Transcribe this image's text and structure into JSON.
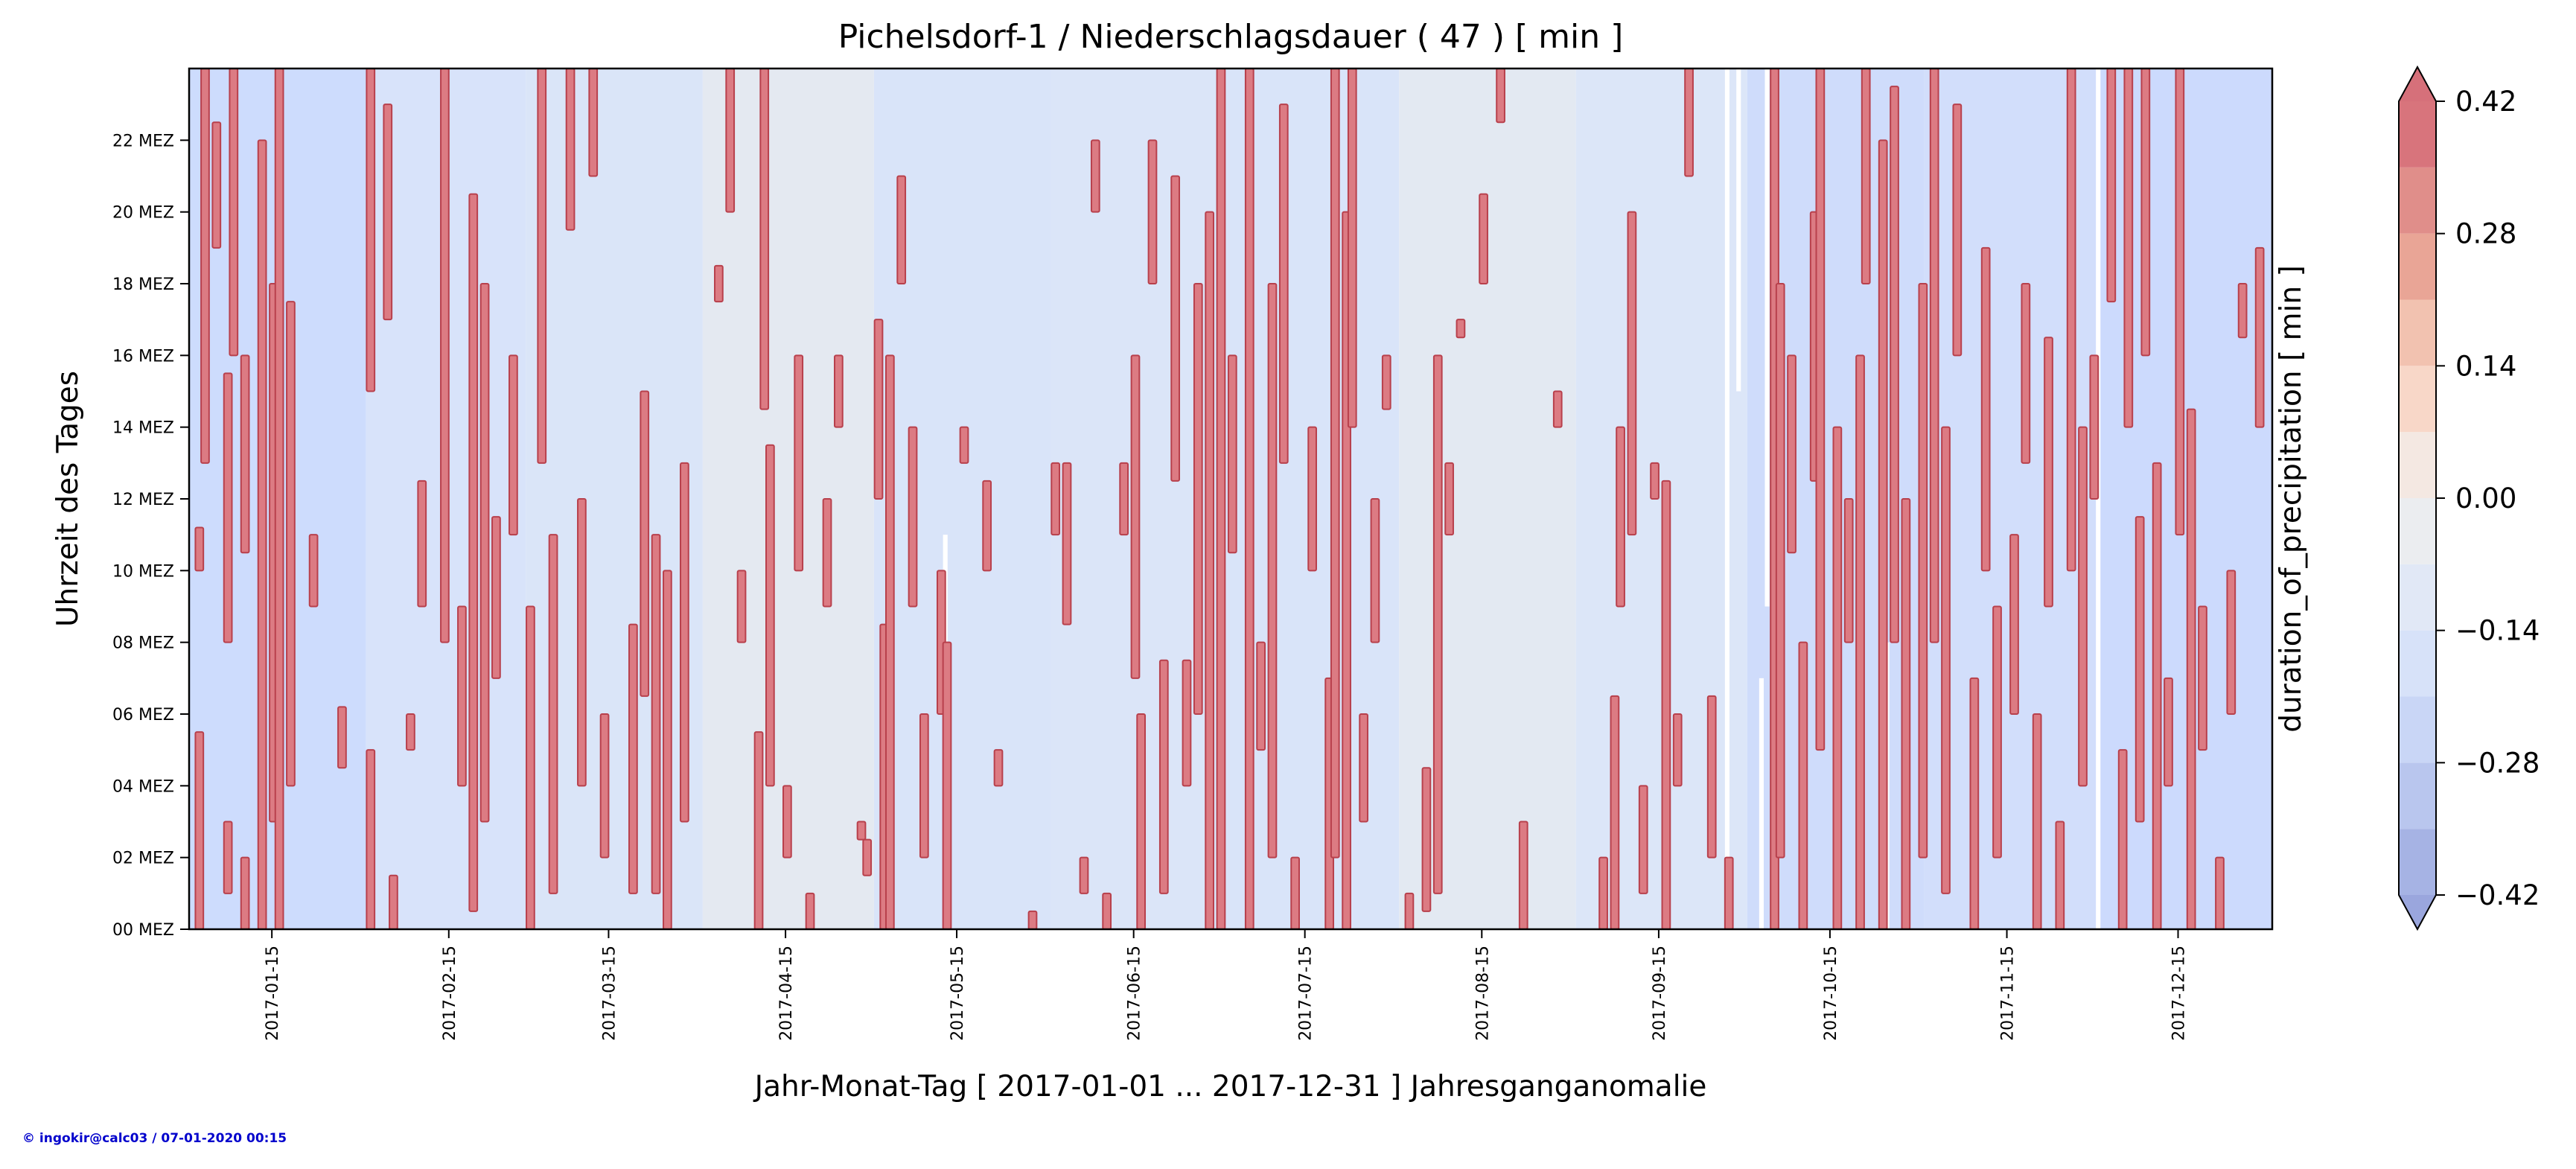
{
  "chart_data": {
    "type": "heatmap",
    "title": "Pichelsdorf-1 / Niederschlagsdauer ( 47 ) [ min ]",
    "xlabel": "Jahr-Monat-Tag [ 2017-01-01 ... 2017-12-31 ] Jahresganganomalie",
    "ylabel": "Uhrzeit des Tages",
    "colorbar_label": "duration_of_precipitation [ min ]",
    "x_range": [
      "2017-01-01",
      "2017-12-31"
    ],
    "y_range": [
      0,
      24
    ],
    "x_ticks": [
      {
        "date": "2017-01-15",
        "label": "2017-01-15"
      },
      {
        "date": "2017-02-15",
        "label": "2017-02-15"
      },
      {
        "date": "2017-03-15",
        "label": "2017-03-15"
      },
      {
        "date": "2017-04-15",
        "label": "2017-04-15"
      },
      {
        "date": "2017-05-15",
        "label": "2017-05-15"
      },
      {
        "date": "2017-06-15",
        "label": "2017-06-15"
      },
      {
        "date": "2017-07-15",
        "label": "2017-07-15"
      },
      {
        "date": "2017-08-15",
        "label": "2017-08-15"
      },
      {
        "date": "2017-09-15",
        "label": "2017-09-15"
      },
      {
        "date": "2017-10-15",
        "label": "2017-10-15"
      },
      {
        "date": "2017-11-15",
        "label": "2017-11-15"
      },
      {
        "date": "2017-12-15",
        "label": "2017-12-15"
      }
    ],
    "y_ticks": [
      {
        "hour": 0,
        "label": "00 MEZ"
      },
      {
        "hour": 2,
        "label": "02 MEZ"
      },
      {
        "hour": 4,
        "label": "04 MEZ"
      },
      {
        "hour": 6,
        "label": "06 MEZ"
      },
      {
        "hour": 8,
        "label": "08 MEZ"
      },
      {
        "hour": 10,
        "label": "10 MEZ"
      },
      {
        "hour": 12,
        "label": "12 MEZ"
      },
      {
        "hour": 14,
        "label": "14 MEZ"
      },
      {
        "hour": 16,
        "label": "16 MEZ"
      },
      {
        "hour": 18,
        "label": "18 MEZ"
      },
      {
        "hour": 20,
        "label": "20 MEZ"
      },
      {
        "hour": 22,
        "label": "22 MEZ"
      }
    ],
    "colorbar": {
      "levels": [
        -0.42,
        -0.35,
        -0.28,
        -0.21,
        -0.14,
        -0.07,
        0.0,
        0.07,
        0.14,
        0.21,
        0.28,
        0.35,
        0.42
      ],
      "colors": [
        "#a6b3e4",
        "#b9c6ee",
        "#c9d6f6",
        "#d7e2f9",
        "#e1e8f6",
        "#ebedf0",
        "#f4e8e2",
        "#f8d7c8",
        "#f2c2b0",
        "#e9a596",
        "#e08e8a",
        "#d8747c"
      ],
      "extend_min_color": "#9aa6dd",
      "extend_max_color": "#d6707a",
      "ticks": [
        {
          "value": -0.42,
          "label": "−0.42"
        },
        {
          "value": -0.28,
          "label": "−0.28"
        },
        {
          "value": -0.14,
          "label": "−0.14"
        },
        {
          "value": 0.0,
          "label": "0.00"
        },
        {
          "value": 0.14,
          "label": "0.14"
        },
        {
          "value": 0.28,
          "label": "0.28"
        },
        {
          "value": 0.42,
          "label": "0.42"
        }
      ]
    },
    "monthly_background": [
      {
        "start": "2017-01-01",
        "end": "2017-01-31",
        "color": "#cddcfd"
      },
      {
        "start": "2017-02-01",
        "end": "2017-02-28",
        "color": "#d8e3fa"
      },
      {
        "start": "2017-03-01",
        "end": "2017-03-31",
        "color": "#dae5f8"
      },
      {
        "start": "2017-04-01",
        "end": "2017-04-30",
        "color": "#e4e9f1"
      },
      {
        "start": "2017-05-01",
        "end": "2017-05-31",
        "color": "#d9e4f9"
      },
      {
        "start": "2017-06-01",
        "end": "2017-06-30",
        "color": "#dbe5f8"
      },
      {
        "start": "2017-07-01",
        "end": "2017-07-31",
        "color": "#d9e4f9"
      },
      {
        "start": "2017-08-01",
        "end": "2017-08-31",
        "color": "#e3e9f2"
      },
      {
        "start": "2017-09-01",
        "end": "2017-09-30",
        "color": "#dce6f8"
      },
      {
        "start": "2017-10-01",
        "end": "2017-10-31",
        "color": "#cfdcfb"
      },
      {
        "start": "2017-11-01",
        "end": "2017-11-30",
        "color": "#d2defb"
      },
      {
        "start": "2017-12-01",
        "end": "2017-12-31",
        "color": "#ccdafd"
      }
    ],
    "precipitation_color": "#dc7b83",
    "precipitation_edge_color": "#b8404c",
    "missing_data_color": "#ffffff",
    "precipitation_events_note": "dense scattered daily precipitation events; see events list",
    "precipitation_events": [
      {
        "date": "2017-01-02",
        "from": 0.0,
        "to": 5.5
      },
      {
        "date": "2017-01-02",
        "from": 10.0,
        "to": 11.2
      },
      {
        "date": "2017-01-03",
        "from": 13.0,
        "to": 24.0
      },
      {
        "date": "2017-01-05",
        "from": 19.0,
        "to": 22.5
      },
      {
        "date": "2017-01-07",
        "from": 1.0,
        "to": 3.0
      },
      {
        "date": "2017-01-07",
        "from": 8.0,
        "to": 15.5
      },
      {
        "date": "2017-01-08",
        "from": 16.0,
        "to": 24.0
      },
      {
        "date": "2017-01-10",
        "from": 0.0,
        "to": 2.0
      },
      {
        "date": "2017-01-10",
        "from": 10.5,
        "to": 16.0
      },
      {
        "date": "2017-01-13",
        "from": 0.0,
        "to": 22.0
      },
      {
        "date": "2017-01-15",
        "from": 3.0,
        "to": 18.0
      },
      {
        "date": "2017-01-16",
        "from": 0.0,
        "to": 24.0
      },
      {
        "date": "2017-01-18",
        "from": 4.0,
        "to": 17.5
      },
      {
        "date": "2017-01-22",
        "from": 9.0,
        "to": 11.0
      },
      {
        "date": "2017-01-27",
        "from": 4.5,
        "to": 6.2
      },
      {
        "date": "2017-02-01",
        "from": 0.0,
        "to": 5.0
      },
      {
        "date": "2017-02-01",
        "from": 15.0,
        "to": 24.0
      },
      {
        "date": "2017-02-04",
        "from": 17.0,
        "to": 23.0
      },
      {
        "date": "2017-02-05",
        "from": 0.0,
        "to": 1.5
      },
      {
        "date": "2017-02-08",
        "from": 5.0,
        "to": 6.0
      },
      {
        "date": "2017-02-10",
        "from": 9.0,
        "to": 12.5
      },
      {
        "date": "2017-02-14",
        "from": 8.0,
        "to": 24.0
      },
      {
        "date": "2017-02-17",
        "from": 4.0,
        "to": 9.0
      },
      {
        "date": "2017-02-19",
        "from": 0.5,
        "to": 20.5
      },
      {
        "date": "2017-02-21",
        "from": 3.0,
        "to": 18.0
      },
      {
        "date": "2017-02-23",
        "from": 7.0,
        "to": 11.5
      },
      {
        "date": "2017-02-26",
        "from": 11.0,
        "to": 16.0
      },
      {
        "date": "2017-03-01",
        "from": 0.0,
        "to": 9.0
      },
      {
        "date": "2017-03-03",
        "from": 13.0,
        "to": 24.0
      },
      {
        "date": "2017-03-05",
        "from": 1.0,
        "to": 11.0
      },
      {
        "date": "2017-03-08",
        "from": 19.5,
        "to": 24.0
      },
      {
        "date": "2017-03-10",
        "from": 4.0,
        "to": 12.0
      },
      {
        "date": "2017-03-12",
        "from": 21.0,
        "to": 24.0
      },
      {
        "date": "2017-03-14",
        "from": 2.0,
        "to": 6.0
      },
      {
        "date": "2017-03-19",
        "from": 1.0,
        "to": 8.5
      },
      {
        "date": "2017-03-21",
        "from": 6.5,
        "to": 15.0
      },
      {
        "date": "2017-03-23",
        "from": 1.0,
        "to": 11.0
      },
      {
        "date": "2017-03-25",
        "from": 0.0,
        "to": 10.0
      },
      {
        "date": "2017-03-28",
        "from": 3.0,
        "to": 13.0
      },
      {
        "date": "2017-04-03",
        "from": 17.5,
        "to": 18.5
      },
      {
        "date": "2017-04-05",
        "from": 20.0,
        "to": 24.0
      },
      {
        "date": "2017-04-07",
        "from": 8.0,
        "to": 10.0
      },
      {
        "date": "2017-04-10",
        "from": 0.0,
        "to": 5.5
      },
      {
        "date": "2017-04-11",
        "from": 14.5,
        "to": 24.0
      },
      {
        "date": "2017-04-12",
        "from": 4.0,
        "to": 13.5
      },
      {
        "date": "2017-04-15",
        "from": 2.0,
        "to": 4.0
      },
      {
        "date": "2017-04-17",
        "from": 10.0,
        "to": 16.0
      },
      {
        "date": "2017-04-19",
        "from": 0.0,
        "to": 1.0
      },
      {
        "date": "2017-04-22",
        "from": 9.0,
        "to": 12.0
      },
      {
        "date": "2017-04-24",
        "from": 14.0,
        "to": 16.0
      },
      {
        "date": "2017-04-28",
        "from": 2.5,
        "to": 3.0
      },
      {
        "date": "2017-04-29",
        "from": 1.5,
        "to": 2.5
      },
      {
        "date": "2017-05-01",
        "from": 12.0,
        "to": 17.0
      },
      {
        "date": "2017-05-02",
        "from": 0.0,
        "to": 8.5
      },
      {
        "date": "2017-05-03",
        "from": 0.0,
        "to": 16.0
      },
      {
        "date": "2017-05-05",
        "from": 18.0,
        "to": 21.0
      },
      {
        "date": "2017-05-07",
        "from": 9.0,
        "to": 14.0
      },
      {
        "date": "2017-05-09",
        "from": 2.0,
        "to": 6.0
      },
      {
        "date": "2017-05-12",
        "from": 6.0,
        "to": 10.0
      },
      {
        "date": "2017-05-13",
        "from": 0.0,
        "to": 8.0
      },
      {
        "date": "2017-05-16",
        "from": 13.0,
        "to": 14.0
      },
      {
        "date": "2017-05-20",
        "from": 10.0,
        "to": 12.5
      },
      {
        "date": "2017-05-22",
        "from": 4.0,
        "to": 5.0
      },
      {
        "date": "2017-05-28",
        "from": 0.0,
        "to": 0.5
      },
      {
        "date": "2017-06-01",
        "from": 11.0,
        "to": 13.0
      },
      {
        "date": "2017-06-03",
        "from": 8.5,
        "to": 13.0
      },
      {
        "date": "2017-06-06",
        "from": 1.0,
        "to": 2.0
      },
      {
        "date": "2017-06-08",
        "from": 20.0,
        "to": 22.0
      },
      {
        "date": "2017-06-10",
        "from": 0.0,
        "to": 1.0
      },
      {
        "date": "2017-06-13",
        "from": 11.0,
        "to": 13.0
      },
      {
        "date": "2017-06-15",
        "from": 7.0,
        "to": 16.0
      },
      {
        "date": "2017-06-16",
        "from": 0.0,
        "to": 6.0
      },
      {
        "date": "2017-06-18",
        "from": 18.0,
        "to": 22.0
      },
      {
        "date": "2017-06-20",
        "from": 1.0,
        "to": 7.5
      },
      {
        "date": "2017-06-22",
        "from": 12.5,
        "to": 21.0
      },
      {
        "date": "2017-06-24",
        "from": 4.0,
        "to": 7.5
      },
      {
        "date": "2017-06-26",
        "from": 6.0,
        "to": 18.0
      },
      {
        "date": "2017-06-28",
        "from": 0.0,
        "to": 20.0
      },
      {
        "date": "2017-06-30",
        "from": 0.0,
        "to": 24.0
      },
      {
        "date": "2017-07-02",
        "from": 10.5,
        "to": 16.0
      },
      {
        "date": "2017-07-05",
        "from": 0.0,
        "to": 24.0
      },
      {
        "date": "2017-07-07",
        "from": 5.0,
        "to": 8.0
      },
      {
        "date": "2017-07-09",
        "from": 2.0,
        "to": 18.0
      },
      {
        "date": "2017-07-11",
        "from": 13.0,
        "to": 23.0
      },
      {
        "date": "2017-07-13",
        "from": 0.0,
        "to": 2.0
      },
      {
        "date": "2017-07-16",
        "from": 10.0,
        "to": 14.0
      },
      {
        "date": "2017-07-19",
        "from": 0.0,
        "to": 7.0
      },
      {
        "date": "2017-07-20",
        "from": 2.0,
        "to": 24.0
      },
      {
        "date": "2017-07-22",
        "from": 0.0,
        "to": 20.0
      },
      {
        "date": "2017-07-23",
        "from": 14.0,
        "to": 24.0
      },
      {
        "date": "2017-07-25",
        "from": 3.0,
        "to": 6.0
      },
      {
        "date": "2017-07-27",
        "from": 8.0,
        "to": 12.0
      },
      {
        "date": "2017-07-29",
        "from": 14.5,
        "to": 16.0
      },
      {
        "date": "2017-08-02",
        "from": 0.0,
        "to": 1.0
      },
      {
        "date": "2017-08-05",
        "from": 0.5,
        "to": 4.5
      },
      {
        "date": "2017-08-07",
        "from": 1.0,
        "to": 16.0
      },
      {
        "date": "2017-08-09",
        "from": 11.0,
        "to": 13.0
      },
      {
        "date": "2017-08-11",
        "from": 16.5,
        "to": 17.0
      },
      {
        "date": "2017-08-15",
        "from": 18.0,
        "to": 20.5
      },
      {
        "date": "2017-08-18",
        "from": 22.5,
        "to": 24.0
      },
      {
        "date": "2017-08-22",
        "from": 0.0,
        "to": 3.0
      },
      {
        "date": "2017-08-28",
        "from": 14.0,
        "to": 15.0
      },
      {
        "date": "2017-09-05",
        "from": 0.0,
        "to": 2.0
      },
      {
        "date": "2017-09-07",
        "from": 0.0,
        "to": 6.5
      },
      {
        "date": "2017-09-08",
        "from": 9.0,
        "to": 14.0
      },
      {
        "date": "2017-09-10",
        "from": 11.0,
        "to": 20.0
      },
      {
        "date": "2017-09-12",
        "from": 1.0,
        "to": 4.0
      },
      {
        "date": "2017-09-14",
        "from": 12.0,
        "to": 13.0
      },
      {
        "date": "2017-09-16",
        "from": 0.0,
        "to": 12.5
      },
      {
        "date": "2017-09-18",
        "from": 4.0,
        "to": 6.0
      },
      {
        "date": "2017-09-20",
        "from": 21.0,
        "to": 24.0
      },
      {
        "date": "2017-09-24",
        "from": 2.0,
        "to": 6.5
      },
      {
        "date": "2017-09-27",
        "from": 0.0,
        "to": 2.0
      },
      {
        "date": "2017-10-05",
        "from": 0.0,
        "to": 24.0
      },
      {
        "date": "2017-10-06",
        "from": 2.0,
        "to": 18.0
      },
      {
        "date": "2017-10-08",
        "from": 10.5,
        "to": 16.0
      },
      {
        "date": "2017-10-10",
        "from": 0.0,
        "to": 8.0
      },
      {
        "date": "2017-10-12",
        "from": 12.5,
        "to": 20.0
      },
      {
        "date": "2017-10-13",
        "from": 5.0,
        "to": 24.0
      },
      {
        "date": "2017-10-16",
        "from": 0.0,
        "to": 14.0
      },
      {
        "date": "2017-10-18",
        "from": 8.0,
        "to": 12.0
      },
      {
        "date": "2017-10-20",
        "from": 0.0,
        "to": 16.0
      },
      {
        "date": "2017-10-21",
        "from": 18.0,
        "to": 24.0
      },
      {
        "date": "2017-10-24",
        "from": 0.0,
        "to": 22.0
      },
      {
        "date": "2017-10-26",
        "from": 8.0,
        "to": 23.5
      },
      {
        "date": "2017-10-28",
        "from": 0.0,
        "to": 12.0
      },
      {
        "date": "2017-10-31",
        "from": 2.0,
        "to": 18.0
      },
      {
        "date": "2017-11-02",
        "from": 8.0,
        "to": 24.0
      },
      {
        "date": "2017-11-04",
        "from": 1.0,
        "to": 14.0
      },
      {
        "date": "2017-11-06",
        "from": 16.0,
        "to": 23.0
      },
      {
        "date": "2017-11-09",
        "from": 0.0,
        "to": 7.0
      },
      {
        "date": "2017-11-11",
        "from": 10.0,
        "to": 19.0
      },
      {
        "date": "2017-11-13",
        "from": 2.0,
        "to": 9.0
      },
      {
        "date": "2017-11-16",
        "from": 6.0,
        "to": 11.0
      },
      {
        "date": "2017-11-18",
        "from": 13.0,
        "to": 18.0
      },
      {
        "date": "2017-11-20",
        "from": 0.0,
        "to": 6.0
      },
      {
        "date": "2017-11-22",
        "from": 9.0,
        "to": 16.5
      },
      {
        "date": "2017-11-24",
        "from": 0.0,
        "to": 3.0
      },
      {
        "date": "2017-11-26",
        "from": 10.0,
        "to": 24.0
      },
      {
        "date": "2017-11-28",
        "from": 4.0,
        "to": 14.0
      },
      {
        "date": "2017-11-30",
        "from": 12.0,
        "to": 16.0
      },
      {
        "date": "2017-12-03",
        "from": 17.5,
        "to": 24.0
      },
      {
        "date": "2017-12-05",
        "from": 0.0,
        "to": 5.0
      },
      {
        "date": "2017-12-06",
        "from": 14.0,
        "to": 24.0
      },
      {
        "date": "2017-12-08",
        "from": 3.0,
        "to": 11.5
      },
      {
        "date": "2017-12-09",
        "from": 16.0,
        "to": 24.0
      },
      {
        "date": "2017-12-11",
        "from": 0.0,
        "to": 13.0
      },
      {
        "date": "2017-12-13",
        "from": 4.0,
        "to": 7.0
      },
      {
        "date": "2017-12-15",
        "from": 11.0,
        "to": 24.0
      },
      {
        "date": "2017-12-17",
        "from": 0.0,
        "to": 14.5
      },
      {
        "date": "2017-12-19",
        "from": 5.0,
        "to": 9.0
      },
      {
        "date": "2017-12-22",
        "from": 0.0,
        "to": 2.0
      },
      {
        "date": "2017-12-24",
        "from": 6.0,
        "to": 10.0
      },
      {
        "date": "2017-12-26",
        "from": 16.5,
        "to": 18.0
      },
      {
        "date": "2017-12-29",
        "from": 14.0,
        "to": 19.0
      }
    ],
    "missing_data": [
      {
        "date": "2017-05-13",
        "from": 0.0,
        "to": 11.0
      },
      {
        "date": "2017-09-27",
        "from": 2.0,
        "to": 24.0
      },
      {
        "date": "2017-09-29",
        "from": 15.0,
        "to": 24.0
      },
      {
        "date": "2017-10-03",
        "from": 0.0,
        "to": 7.0
      },
      {
        "date": "2017-10-04",
        "from": 9.0,
        "to": 24.0
      },
      {
        "date": "2017-10-25",
        "from": 0.0,
        "to": 8.0
      },
      {
        "date": "2017-12-01",
        "from": 0.0,
        "to": 24.0
      }
    ]
  },
  "footer": {
    "credit": "© ingokir@calc03 / 07-01-2020 00:15",
    "credit_color": "#0000cc"
  }
}
